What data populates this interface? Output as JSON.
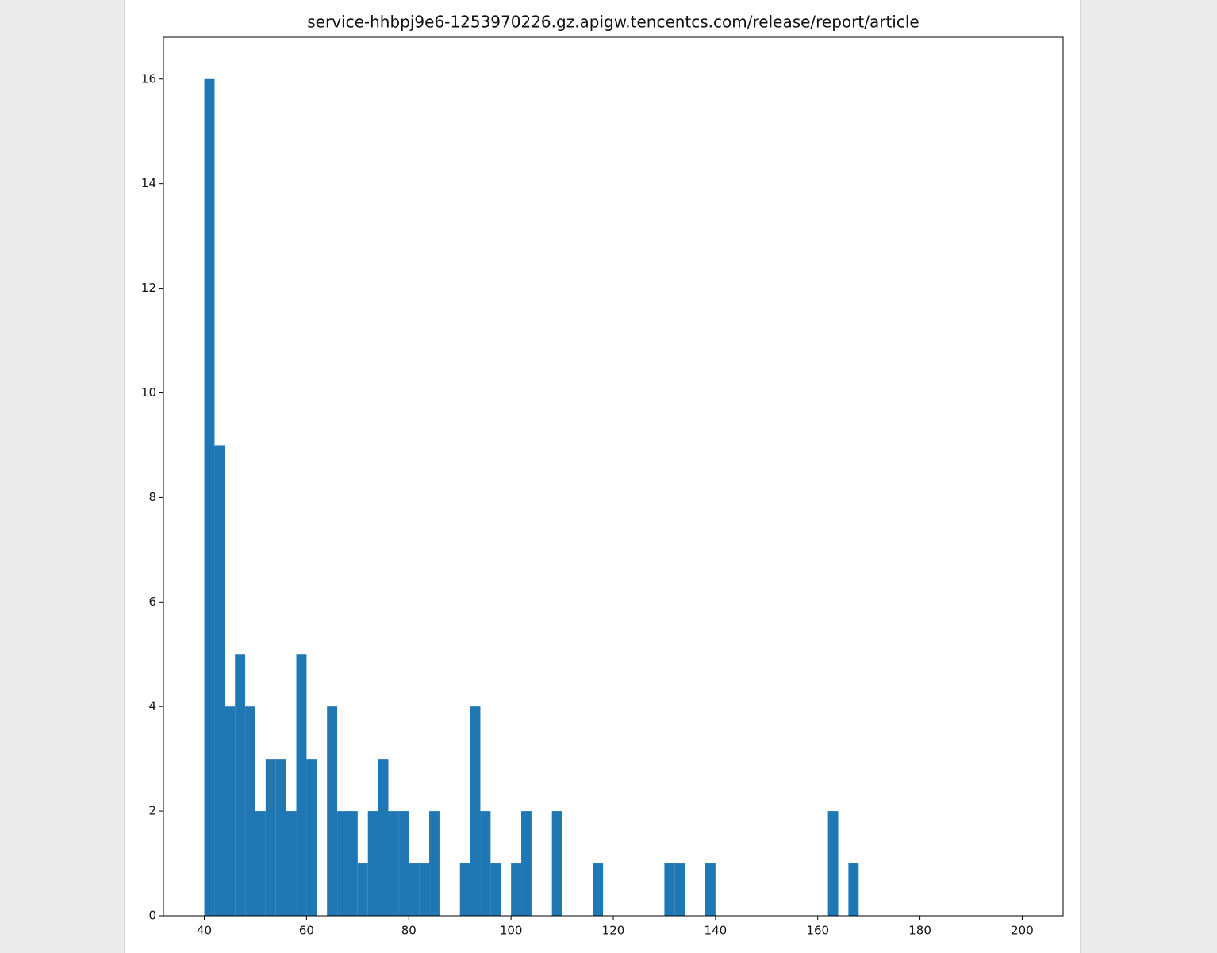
{
  "chart_data": {
    "type": "histogram",
    "title": "service-hhbpj9e6-1253970226.gz.apigw.tencentcs.com/release/report/article",
    "bins": [
      40,
      42,
      44,
      46,
      48,
      50,
      52,
      54,
      56,
      58,
      60,
      62,
      64,
      66,
      68,
      70,
      72,
      74,
      76,
      78,
      80,
      82,
      84,
      86,
      88,
      90,
      92,
      94,
      96,
      98,
      100,
      102,
      104,
      106,
      108,
      110,
      112,
      114,
      116,
      118,
      120,
      122,
      124,
      126,
      128,
      130,
      132,
      134,
      136,
      138,
      140,
      142,
      144,
      146,
      148,
      150,
      152,
      154,
      156,
      158,
      160,
      162,
      164,
      166,
      168,
      170,
      172,
      174,
      176,
      178,
      180,
      182,
      184,
      186,
      188,
      190,
      192,
      194,
      196,
      198,
      200
    ],
    "values": [
      16,
      9,
      4,
      5,
      4,
      2,
      3,
      3,
      2,
      5,
      3,
      0,
      4,
      2,
      2,
      1,
      2,
      3,
      2,
      2,
      1,
      1,
      2,
      0,
      0,
      1,
      4,
      2,
      1,
      0,
      1,
      2,
      0,
      0,
      2,
      0,
      0,
      0,
      1,
      0,
      0,
      0,
      0,
      0,
      0,
      1,
      1,
      0,
      0,
      1,
      0,
      0,
      0,
      0,
      0,
      0,
      0,
      0,
      0,
      0,
      0,
      2,
      0,
      1,
      0,
      0,
      0,
      0,
      0,
      0,
      0,
      0,
      0,
      0,
      0,
      0,
      0,
      0,
      0,
      0
    ],
    "color": "#1f77b4",
    "xlim": [
      32,
      208
    ],
    "ylim": [
      0,
      16.8
    ],
    "xticks": [
      40,
      60,
      80,
      100,
      120,
      140,
      160,
      180,
      200
    ],
    "yticks": [
      0,
      2,
      4,
      6,
      8,
      10,
      12,
      14,
      16
    ]
  }
}
